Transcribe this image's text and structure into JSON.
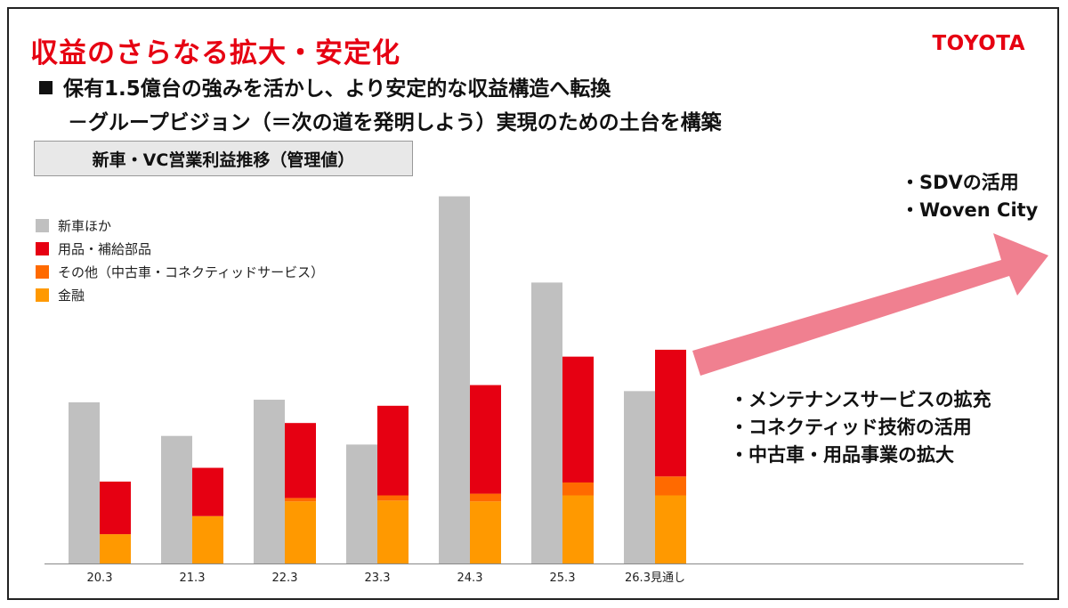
{
  "title": "収益のさらなる拡大・安定化",
  "logo": "TOYOTA",
  "headline": "保有1.5億台の強みを活かし、より安定的な収益構造へ転換",
  "subline": "－グループビジョン（＝次の道を発明しよう）実現のための土台を構築",
  "chart_label": "新車・VC営業利益推移（管理値）",
  "legend": [
    {
      "label": "新車ほか",
      "color": "#c0c0c0"
    },
    {
      "label": "用品・補給部品",
      "color": "#e60012"
    },
    {
      "label": "その他（中古車・コネクティッドサービス）",
      "color": "#ff6a00"
    },
    {
      "label": "金融",
      "color": "#ff9900"
    }
  ],
  "callouts": {
    "top": [
      "・SDVの活用",
      "・Woven City"
    ],
    "bottom": [
      "・メンテナンスサービスの拡充",
      "・コネクティッド技術の活用",
      "・中古車・用品事業の拡大"
    ]
  },
  "arrow_color": "#f08090",
  "chart_data": {
    "type": "bar",
    "categories": [
      "20.3",
      "21.3",
      "22.3",
      "23.3",
      "24.3",
      "25.3",
      "26.3見通し"
    ],
    "series": [
      {
        "name": "新車ほか",
        "values": [
          187,
          148,
          190,
          138,
          426,
          326,
          200
        ],
        "color": "#c0c0c0"
      },
      {
        "name": "金融",
        "values": [
          34,
          55,
          72,
          73,
          72,
          79,
          79
        ],
        "color": "#ff9900"
      },
      {
        "name": "その他（中古車・コネクティッドサービス）",
        "values": [
          0,
          0,
          4,
          6,
          9,
          15,
          22
        ],
        "color": "#ff6a00"
      },
      {
        "name": "用品・補給部品",
        "values": [
          61,
          56,
          87,
          104,
          126,
          146,
          147
        ],
        "color": "#e60012"
      }
    ],
    "stacked_series": [
      "金融",
      "その他（中古車・コネクティッドサービス）",
      "用品・補給部品"
    ],
    "unit": "",
    "title": "",
    "xlabel": "",
    "ylabel": "",
    "ylim": [
      0,
      440
    ],
    "grid": false,
    "legend_position": "top-left"
  }
}
